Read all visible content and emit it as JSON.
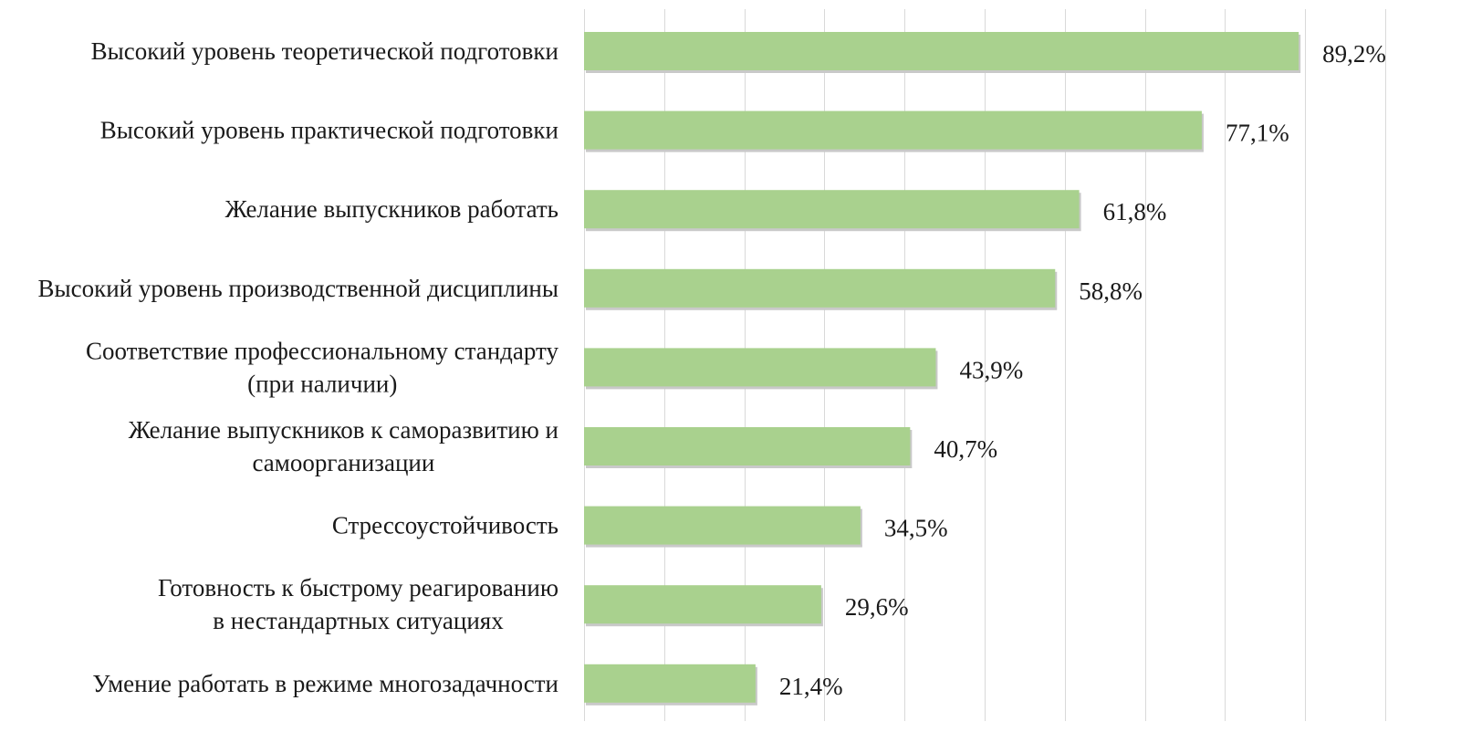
{
  "chart_data": {
    "type": "bar",
    "orientation": "horizontal",
    "title": "",
    "xlabel": "",
    "ylabel": "",
    "xlim": [
      0,
      100
    ],
    "grid": true,
    "legend": "none",
    "bar_color": "#a9d18e",
    "categories": [
      [
        "Высокий уровень теоретической подготовки"
      ],
      [
        "Высокий уровень практической подготовки"
      ],
      [
        "Желание выпускников работать"
      ],
      [
        "Высокий уровень производственной дисциплины"
      ],
      [
        "Соответствие профессиональному стандарту",
        "(при наличии)"
      ],
      [
        "Желание выпускников к саморазвитию и",
        "самоорганизации"
      ],
      [
        "Стрессоустойчивость"
      ],
      [
        "Готовность к быстрому реагированию",
        "в нестандартных ситуациях"
      ],
      [
        "Умение работать в режиме многозадачности"
      ]
    ],
    "values": [
      89.2,
      77.1,
      61.8,
      58.8,
      43.9,
      40.7,
      34.5,
      29.6,
      21.4
    ],
    "value_labels": [
      "89,2%",
      "77,1%",
      "61,8%",
      "58,8%",
      "43,9%",
      "40,7%",
      "34,5%",
      "29,6%",
      "21,4%"
    ]
  }
}
